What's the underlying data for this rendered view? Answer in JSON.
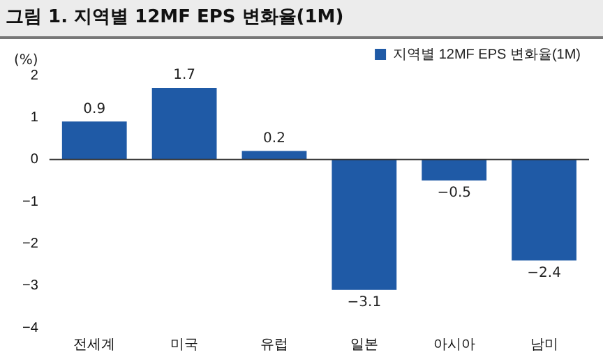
{
  "chart_data": {
    "type": "bar",
    "title": "그림 1. 지역별 12MF EPS 변화율(1M)",
    "ylabel": "(%)",
    "categories": [
      "전세계",
      "미국",
      "유럽",
      "일본",
      "아시아",
      "남미"
    ],
    "series": [
      {
        "name": "지역별 12MF EPS 변화율(1M)",
        "color": "#1f5aa6",
        "values": [
          0.9,
          1.7,
          0.2,
          -3.1,
          -0.5,
          -2.4
        ]
      }
    ],
    "ylim": [
      -4,
      2
    ],
    "yticks": [
      -4,
      -3,
      -2,
      -1,
      0,
      1,
      2
    ],
    "grid": false,
    "ref_lines": [
      {
        "axis": "y",
        "value": 0,
        "color": "#333333"
      }
    ],
    "legend": "top right",
    "data_labels": true
  }
}
